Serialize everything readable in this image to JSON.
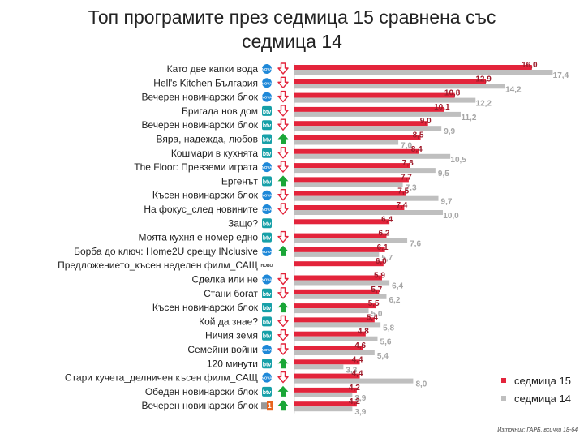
{
  "title": "Топ програмите през седмица 15 сравнена със седмица 14",
  "source": "Източник: ГАРБ, всички 18-64",
  "colors": {
    "week15": "#e3243b",
    "week14": "#bfbfbf",
    "up": "#1aa637",
    "down": "#e3243b"
  },
  "chart_data": {
    "type": "bar",
    "orientation": "horizontal",
    "title": "Топ програмите през седмица 15 сравнена със седмица 14",
    "xlim": [
      0,
      18
    ],
    "legend_position": "bottom-right",
    "grid": false,
    "categories": [
      "Като две капки вода",
      "Hell's Kitchen България",
      "Вечерен новинарски блок",
      "Бригада нов дом",
      "Вечерен новинарски блок",
      "Вяра, надежда, любов",
      "Кошмари в кухнята",
      "The Floor: Превземи играта",
      "Ергенът",
      "Късен новинарски блок",
      "На фокус_след новините",
      "Защо?",
      "Моята кухня е номер едно",
      "Борба до ключ: Home2U срещу INclusive",
      "Предложението_късен неделен филм_САЩ",
      "Сделка или не",
      "Стани богат",
      "Късен новинарски блок",
      "Кой да знае?",
      "Ничия земя",
      "Семейни войни",
      "120 минути",
      "Стари кучета_делничен късен филм_САЩ",
      "Обеден новинарски блок",
      "Вечерен новинарски блок"
    ],
    "channels": [
      "nova-icon",
      "nova-icon",
      "nova-icon",
      "btv-icon",
      "btv-icon",
      "btv-icon",
      "btv-icon",
      "nova-icon",
      "btv-icon",
      "nova-icon",
      "nova-icon",
      "btv-icon",
      "btv-icon",
      "nova-icon",
      "novo-icon",
      "nova-icon",
      "btv-icon",
      "btv-icon",
      "btv-icon",
      "btv-icon",
      "nova-icon",
      "btv-icon",
      "nova-icon",
      "btv-icon",
      "bnt1-icon"
    ],
    "trend": [
      "down",
      "down",
      "down",
      "down",
      "down",
      "up",
      "down",
      "down",
      "up",
      "down",
      "down",
      "none",
      "down",
      "up",
      "none",
      "down",
      "down",
      "up",
      "down",
      "down",
      "down",
      "up",
      "down",
      "up",
      "up"
    ],
    "series": [
      {
        "name": "седмица 15",
        "values": [
          16.0,
          12.9,
          10.8,
          10.1,
          9.0,
          8.5,
          8.4,
          7.8,
          7.7,
          7.5,
          7.4,
          6.4,
          6.2,
          6.1,
          6.0,
          5.9,
          5.7,
          5.5,
          5.4,
          4.8,
          4.6,
          4.4,
          4.4,
          4.2,
          4.2
        ],
        "labels": [
          "16,0",
          "12,9",
          "10,8",
          "10,1",
          "9,0",
          "8,5",
          "8,4",
          "7,8",
          "7,7",
          "7,5",
          "7,4",
          "6,4",
          "6,2",
          "6,1",
          "6,0",
          "5,9",
          "5,7",
          "5,5",
          "5,4",
          "4,8",
          "4,6",
          "4,4",
          "4,4",
          "4,2",
          "4,2"
        ]
      },
      {
        "name": "седмица 14",
        "values": [
          17.4,
          14.2,
          12.2,
          11.2,
          9.9,
          7.0,
          10.5,
          9.5,
          7.3,
          9.7,
          10.0,
          null,
          7.6,
          5.7,
          null,
          6.4,
          6.2,
          5.0,
          5.8,
          5.6,
          5.4,
          3.3,
          8.0,
          3.9,
          3.9
        ],
        "labels": [
          "17,4",
          "14,2",
          "12,2",
          "11,2",
          "9,9",
          "7,0",
          "10,5",
          "9,5",
          "7,3",
          "9,7",
          "10,0",
          "",
          "7,6",
          "5,7",
          "",
          "6,4",
          "6,2",
          "5,0",
          "5,8",
          "5,6",
          "5,4",
          "3,3",
          "8,0",
          "3,9",
          "3,9"
        ]
      }
    ]
  },
  "channel_logos": {
    "nova-icon": "NOVA",
    "btv-icon": "btv",
    "novo-icon": "НОВО",
    "bnt1-icon": "1"
  }
}
